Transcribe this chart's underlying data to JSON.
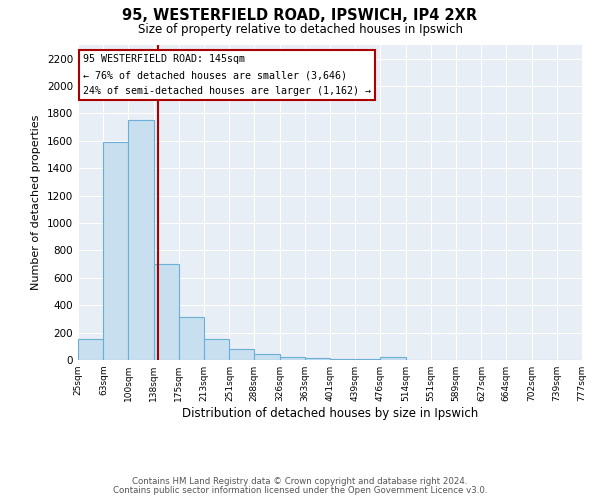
{
  "title": "95, WESTERFIELD ROAD, IPSWICH, IP4 2XR",
  "subtitle": "Size of property relative to detached houses in Ipswich",
  "xlabel": "Distribution of detached houses by size in Ipswich",
  "ylabel": "Number of detached properties",
  "bar_left_edges": [
    25,
    63,
    100,
    138,
    175,
    213,
    251,
    288,
    326,
    363,
    401,
    439,
    476,
    514,
    551,
    589,
    627,
    664,
    702,
    739
  ],
  "bar_heights": [
    155,
    1590,
    1750,
    700,
    315,
    155,
    80,
    45,
    25,
    15,
    10,
    5,
    20,
    0,
    0,
    0,
    0,
    0,
    0,
    0
  ],
  "tick_labels": [
    "25sqm",
    "63sqm",
    "100sqm",
    "138sqm",
    "175sqm",
    "213sqm",
    "251sqm",
    "288sqm",
    "326sqm",
    "363sqm",
    "401sqm",
    "439sqm",
    "476sqm",
    "514sqm",
    "551sqm",
    "589sqm",
    "627sqm",
    "664sqm",
    "702sqm",
    "739sqm",
    "777sqm"
  ],
  "bar_color": "#c8dff0",
  "bar_edge_color": "#6aafd6",
  "vline_x": 145,
  "vline_color": "#aa0000",
  "annotation_lines": [
    "95 WESTERFIELD ROAD: 145sqm",
    "← 76% of detached houses are smaller (3,646)",
    "24% of semi-detached houses are larger (1,162) →"
  ],
  "ylim": [
    0,
    2300
  ],
  "yticks": [
    0,
    200,
    400,
    600,
    800,
    1000,
    1200,
    1400,
    1600,
    1800,
    2000,
    2200
  ],
  "footer1": "Contains HM Land Registry data © Crown copyright and database right 2024.",
  "footer2": "Contains public sector information licensed under the Open Government Licence v3.0.",
  "bg_color": "#ffffff",
  "plot_bg_color": "#e8eef5",
  "grid_color": "#ffffff"
}
